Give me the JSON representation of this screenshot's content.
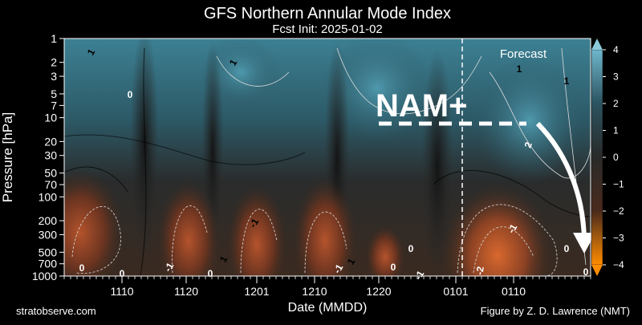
{
  "chart_data": {
    "type": "heatmap",
    "title": "GFS Northern Annular Mode Index",
    "subtitle": "Fcst Init: 2025-01-02",
    "xlabel": "Date (MMDD)",
    "ylabel": "Pressure [hPa]",
    "y_scale": "log",
    "y_inverted": true,
    "ylim": [
      1000,
      1
    ],
    "x_range": [
      "1101",
      "0122"
    ],
    "x_ticks": [
      "1110",
      "1120",
      "1201",
      "1210",
      "1220",
      "0101",
      "0110"
    ],
    "y_ticks": [
      1,
      2,
      3,
      5,
      7,
      10,
      20,
      30,
      50,
      70,
      100,
      200,
      300,
      500,
      700,
      1000
    ],
    "colorbar": {
      "range": [
        -4,
        4
      ],
      "ticks": [
        4,
        3,
        2,
        1,
        0,
        -1,
        -2,
        -3,
        -4
      ],
      "colors": [
        "#ff8c00",
        "#4a2a1c",
        "#2a2a2a",
        "#2b5360",
        "#6fb7cc"
      ]
    },
    "forecast_start": "0102",
    "annotations": [
      "Forecast",
      "NAM+"
    ]
  },
  "footer": {
    "left": "stratobserve.com",
    "right": "Figure by Z. D. Lawrence (NMT)"
  }
}
